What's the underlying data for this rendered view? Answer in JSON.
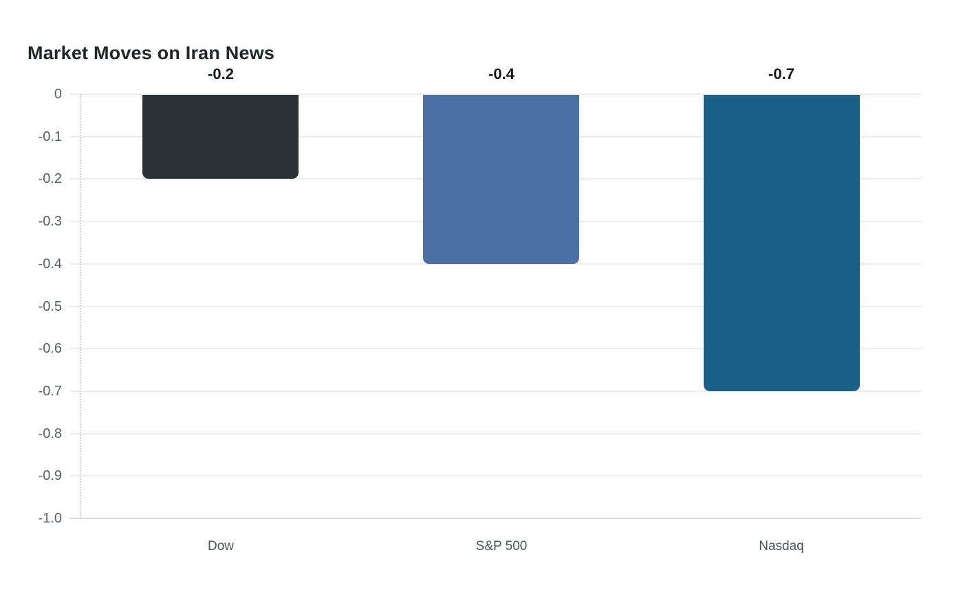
{
  "title": "Market Moves on Iran News",
  "chart_data": {
    "type": "bar",
    "title": "Market Moves on Iran News",
    "orientation": "vertical",
    "categories": [
      "Dow",
      "S&P 500",
      "Nasdaq"
    ],
    "values": [
      -0.2,
      -0.4,
      -0.7
    ],
    "value_labels": [
      "-0.2",
      "-0.4",
      "-0.7"
    ],
    "bar_colors": [
      "#2c3337",
      "#4b70a6",
      "#1a6189"
    ],
    "xlabel": "",
    "ylabel": "",
    "ylim": [
      -1.0,
      0
    ],
    "yticks": [
      0,
      -0.1,
      -0.2,
      -0.3,
      -0.4,
      -0.5,
      -0.6,
      -0.7,
      -0.8,
      -0.9,
      -1.0
    ],
    "ytick_labels": [
      "0",
      "-0.1",
      "-0.2",
      "-0.3",
      "-0.4",
      "-0.5",
      "-0.6",
      "-0.7",
      "-0.8",
      "-0.9",
      "-1.0"
    ],
    "grid": true,
    "legend": false
  },
  "colors": {
    "background": "#ffffff",
    "grid": "#ececec",
    "baseline_grid": "#dcdcdc",
    "axis_dotted": "#ced4d7",
    "tick_label": "#566066",
    "category_label": "#4c545b",
    "value_label": "#15181b",
    "title": "#21262b"
  }
}
